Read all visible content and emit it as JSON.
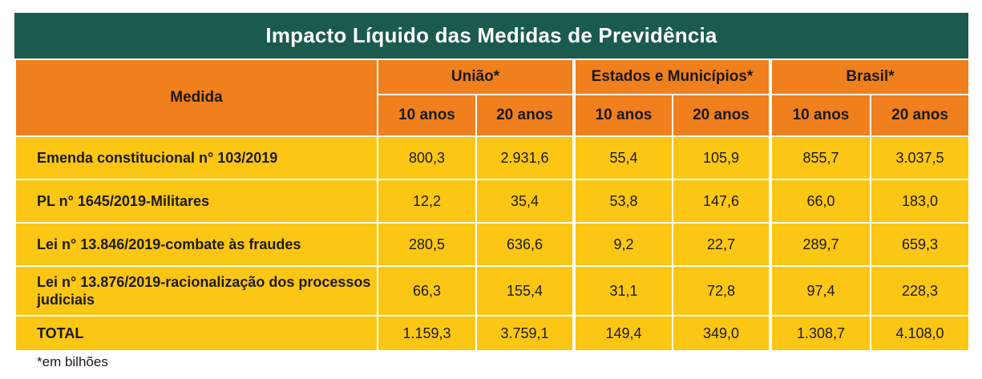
{
  "title": "Impacto Líquido das Medidas de Previdência",
  "header": {
    "medida": "Medida",
    "groups": [
      "União*",
      "Estados e Municípios*",
      "Brasil*"
    ],
    "sub": [
      "10 anos",
      "20 anos",
      "10 anos",
      "20 anos",
      "10 anos",
      "20 anos"
    ]
  },
  "rows": [
    {
      "label": "Emenda constitucional n° 103/2019",
      "values": [
        "800,3",
        "2.931,6",
        "55,4",
        "105,9",
        "855,7",
        "3.037,5"
      ]
    },
    {
      "label": "PL n° 1645/2019-Militares",
      "values": [
        "12,2",
        "35,4",
        "53,8",
        "147,6",
        "66,0",
        "183,0"
      ]
    },
    {
      "label": "Lei n° 13.846/2019-combate às fraudes",
      "values": [
        "280,5",
        "636,6",
        "9,2",
        "22,7",
        "289,7",
        "659,3"
      ]
    },
    {
      "label": "Lei n° 13.876/2019-racionalização dos processos judiciais",
      "values": [
        "66,3",
        "155,4",
        "31,1",
        "72,8",
        "97,4",
        "228,3"
      ]
    },
    {
      "label": "TOTAL",
      "values": [
        "1.159,3",
        "3.759,1",
        "149,4",
        "349,0",
        "1.308,7",
        "4.108,0"
      ]
    }
  ],
  "note": "*em bilhões"
}
